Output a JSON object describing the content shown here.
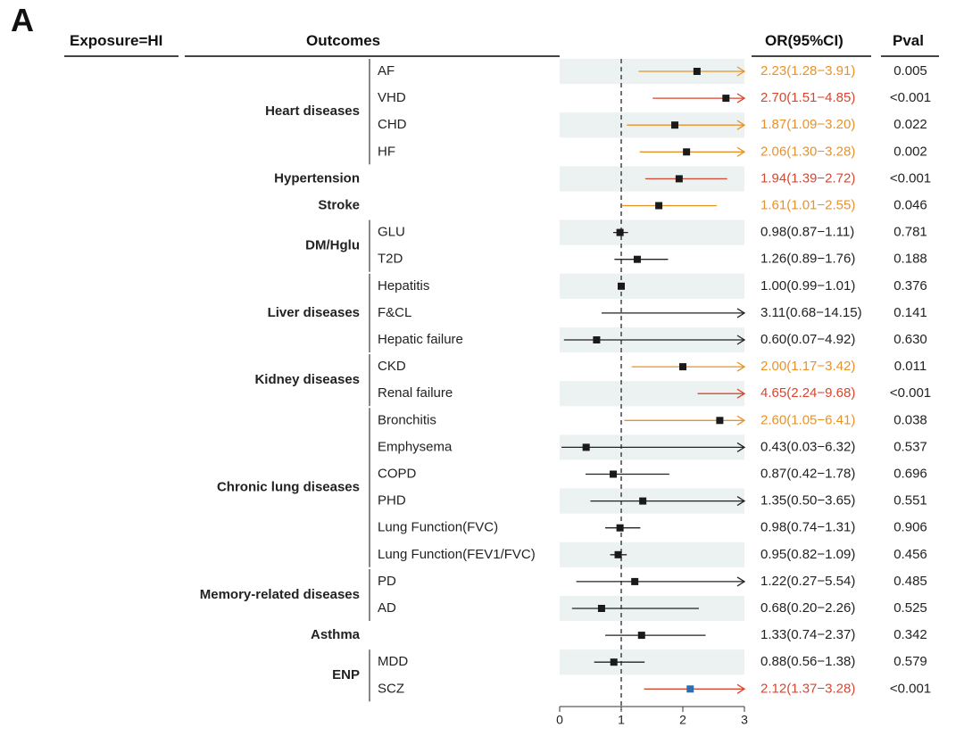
{
  "panel_letter": "A",
  "header": {
    "exposure": "Exposure=HI",
    "outcomes": "Outcomes",
    "or": "OR(95%CI)",
    "pval": "Pval"
  },
  "colors": {
    "orange": "#E8922A",
    "red": "#D9462E",
    "black": "#222222",
    "blue": "#2F6FB0",
    "band": "#ECF1F1"
  },
  "chart_data": {
    "type": "forest",
    "xlim": [
      0,
      3
    ],
    "xticks": [
      "0",
      "1",
      "2",
      "3"
    ],
    "reference_line": 1,
    "groups": [
      {
        "name": "Heart diseases",
        "start": 0,
        "end": 3
      },
      {
        "name": "Hypertension",
        "start": 4,
        "end": 4
      },
      {
        "name": "Stroke",
        "start": 5,
        "end": 5
      },
      {
        "name": "DM/Hglu",
        "start": 6,
        "end": 7
      },
      {
        "name": "Liver diseases",
        "start": 8,
        "end": 10
      },
      {
        "name": "Kidney diseases",
        "start": 11,
        "end": 12
      },
      {
        "name": "Chronic lung diseases",
        "start": 13,
        "end": 18
      },
      {
        "name": "Memory-related diseases",
        "start": 19,
        "end": 20
      },
      {
        "name": "Asthma",
        "start": 21,
        "end": 21
      },
      {
        "name": "ENP",
        "start": 22,
        "end": 23
      }
    ],
    "rows": [
      {
        "outcome": "AF",
        "or": 2.23,
        "lo": 1.28,
        "hi": 3.91,
        "or_text": "2.23(1.28−3.91)",
        "pval": "0.005",
        "color": "orange"
      },
      {
        "outcome": "VHD",
        "or": 2.7,
        "lo": 1.51,
        "hi": 4.85,
        "or_text": "2.70(1.51−4.85)",
        "pval": "<0.001",
        "color": "red"
      },
      {
        "outcome": "CHD",
        "or": 1.87,
        "lo": 1.09,
        "hi": 3.2,
        "or_text": "1.87(1.09−3.20)",
        "pval": "0.022",
        "color": "orange"
      },
      {
        "outcome": "HF",
        "or": 2.06,
        "lo": 1.3,
        "hi": 3.28,
        "or_text": "2.06(1.30−3.28)",
        "pval": "0.002",
        "color": "orange"
      },
      {
        "outcome": "",
        "or": 1.94,
        "lo": 1.39,
        "hi": 2.72,
        "or_text": "1.94(1.39−2.72)",
        "pval": "<0.001",
        "color": "red"
      },
      {
        "outcome": "",
        "or": 1.61,
        "lo": 1.01,
        "hi": 2.55,
        "or_text": "1.61(1.01−2.55)",
        "pval": "0.046",
        "color": "orange"
      },
      {
        "outcome": "GLU",
        "or": 0.98,
        "lo": 0.87,
        "hi": 1.11,
        "or_text": "0.98(0.87−1.11)",
        "pval": "0.781",
        "color": "black"
      },
      {
        "outcome": "T2D",
        "or": 1.26,
        "lo": 0.89,
        "hi": 1.76,
        "or_text": "1.26(0.89−1.76)",
        "pval": "0.188",
        "color": "black"
      },
      {
        "outcome": "Hepatitis",
        "or": 1.0,
        "lo": 0.99,
        "hi": 1.01,
        "or_text": "1.00(0.99−1.01)",
        "pval": "0.376",
        "color": "black"
      },
      {
        "outcome": "F&CL",
        "or": 3.11,
        "lo": 0.68,
        "hi": 14.15,
        "or_text": "3.11(0.68−14.15)",
        "pval": "0.141",
        "color": "black"
      },
      {
        "outcome": "Hepatic failure",
        "or": 0.6,
        "lo": 0.07,
        "hi": 4.92,
        "or_text": "0.60(0.07−4.92)",
        "pval": "0.630",
        "color": "black"
      },
      {
        "outcome": "CKD",
        "or": 2.0,
        "lo": 1.17,
        "hi": 3.42,
        "or_text": "2.00(1.17−3.42)",
        "pval": "0.011",
        "color": "orange"
      },
      {
        "outcome": "Renal failure",
        "or": 4.65,
        "lo": 2.24,
        "hi": 9.68,
        "or_text": "4.65(2.24−9.68)",
        "pval": "<0.001",
        "color": "red"
      },
      {
        "outcome": "Bronchitis",
        "or": 2.6,
        "lo": 1.05,
        "hi": 6.41,
        "or_text": "2.60(1.05−6.41)",
        "pval": "0.038",
        "color": "orange"
      },
      {
        "outcome": "Emphysema",
        "or": 0.43,
        "lo": 0.03,
        "hi": 6.32,
        "or_text": "0.43(0.03−6.32)",
        "pval": "0.537",
        "color": "black"
      },
      {
        "outcome": "COPD",
        "or": 0.87,
        "lo": 0.42,
        "hi": 1.78,
        "or_text": "0.87(0.42−1.78)",
        "pval": "0.696",
        "color": "black"
      },
      {
        "outcome": "PHD",
        "or": 1.35,
        "lo": 0.5,
        "hi": 3.65,
        "or_text": "1.35(0.50−3.65)",
        "pval": "0.551",
        "color": "black"
      },
      {
        "outcome": "Lung Function(FVC)",
        "or": 0.98,
        "lo": 0.74,
        "hi": 1.31,
        "or_text": "0.98(0.74−1.31)",
        "pval": "0.906",
        "color": "black"
      },
      {
        "outcome": "Lung Function(FEV1/FVC)",
        "or": 0.95,
        "lo": 0.82,
        "hi": 1.09,
        "or_text": "0.95(0.82−1.09)",
        "pval": "0.456",
        "color": "black"
      },
      {
        "outcome": "PD",
        "or": 1.22,
        "lo": 0.27,
        "hi": 5.54,
        "or_text": "1.22(0.27−5.54)",
        "pval": "0.485",
        "color": "black"
      },
      {
        "outcome": "AD",
        "or": 0.68,
        "lo": 0.2,
        "hi": 2.26,
        "or_text": "0.68(0.20−2.26)",
        "pval": "0.525",
        "color": "black"
      },
      {
        "outcome": "",
        "or": 1.33,
        "lo": 0.74,
        "hi": 2.37,
        "or_text": "1.33(0.74−2.37)",
        "pval": "0.342",
        "color": "black"
      },
      {
        "outcome": "MDD",
        "or": 0.88,
        "lo": 0.56,
        "hi": 1.38,
        "or_text": "0.88(0.56−1.38)",
        "pval": "0.579",
        "color": "black"
      },
      {
        "outcome": "SCZ",
        "or": 2.12,
        "lo": 1.37,
        "hi": 3.28,
        "or_text": "2.12(1.37−3.28)",
        "pval": "<0.001",
        "color": "red",
        "marker_color": "blue"
      }
    ]
  }
}
